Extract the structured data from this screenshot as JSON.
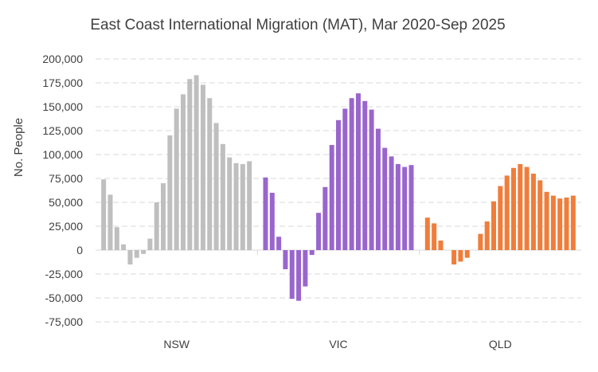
{
  "chart_data": {
    "type": "bar",
    "title": "East Coast International Migration (MAT), Mar 2020-Sep 2025",
    "xlabel": "",
    "ylabel": "No. People",
    "ylim": [
      -75000,
      200000
    ],
    "yticks": [
      200000,
      175000,
      150000,
      125000,
      100000,
      75000,
      50000,
      25000,
      0,
      -25000,
      -50000,
      -75000
    ],
    "ytick_labels": [
      "200,000",
      "175,000",
      "150,000",
      "125,000",
      "100,000",
      "75,000",
      "50,000",
      "25,000",
      "0",
      "-25,000",
      "-50,000",
      "-75,000"
    ],
    "grid": true,
    "legend": "none",
    "series": [
      {
        "name": "NSW",
        "color": "#bfbfbf",
        "values": [
          74000,
          58000,
          24000,
          6000,
          -15000,
          -8000,
          -4000,
          12000,
          50000,
          70000,
          120000,
          148000,
          163000,
          179000,
          183000,
          173000,
          159000,
          133000,
          111000,
          97000,
          91000,
          90000,
          93000
        ]
      },
      {
        "name": "VIC",
        "color": "#9966cc",
        "values": [
          76000,
          60000,
          14000,
          -20000,
          -51000,
          -53000,
          -38000,
          -5000,
          39000,
          66000,
          110000,
          136000,
          148000,
          159000,
          164000,
          156000,
          147000,
          127000,
          107000,
          98000,
          90000,
          87000,
          89000
        ]
      },
      {
        "name": "QLD",
        "color": "#f07d3a",
        "values": [
          34000,
          28000,
          10000,
          0,
          -15000,
          -12000,
          -8000,
          0,
          17000,
          30000,
          51000,
          67000,
          78000,
          86000,
          90000,
          87000,
          80000,
          73000,
          61000,
          57000,
          54000,
          55000,
          57000
        ]
      }
    ]
  }
}
